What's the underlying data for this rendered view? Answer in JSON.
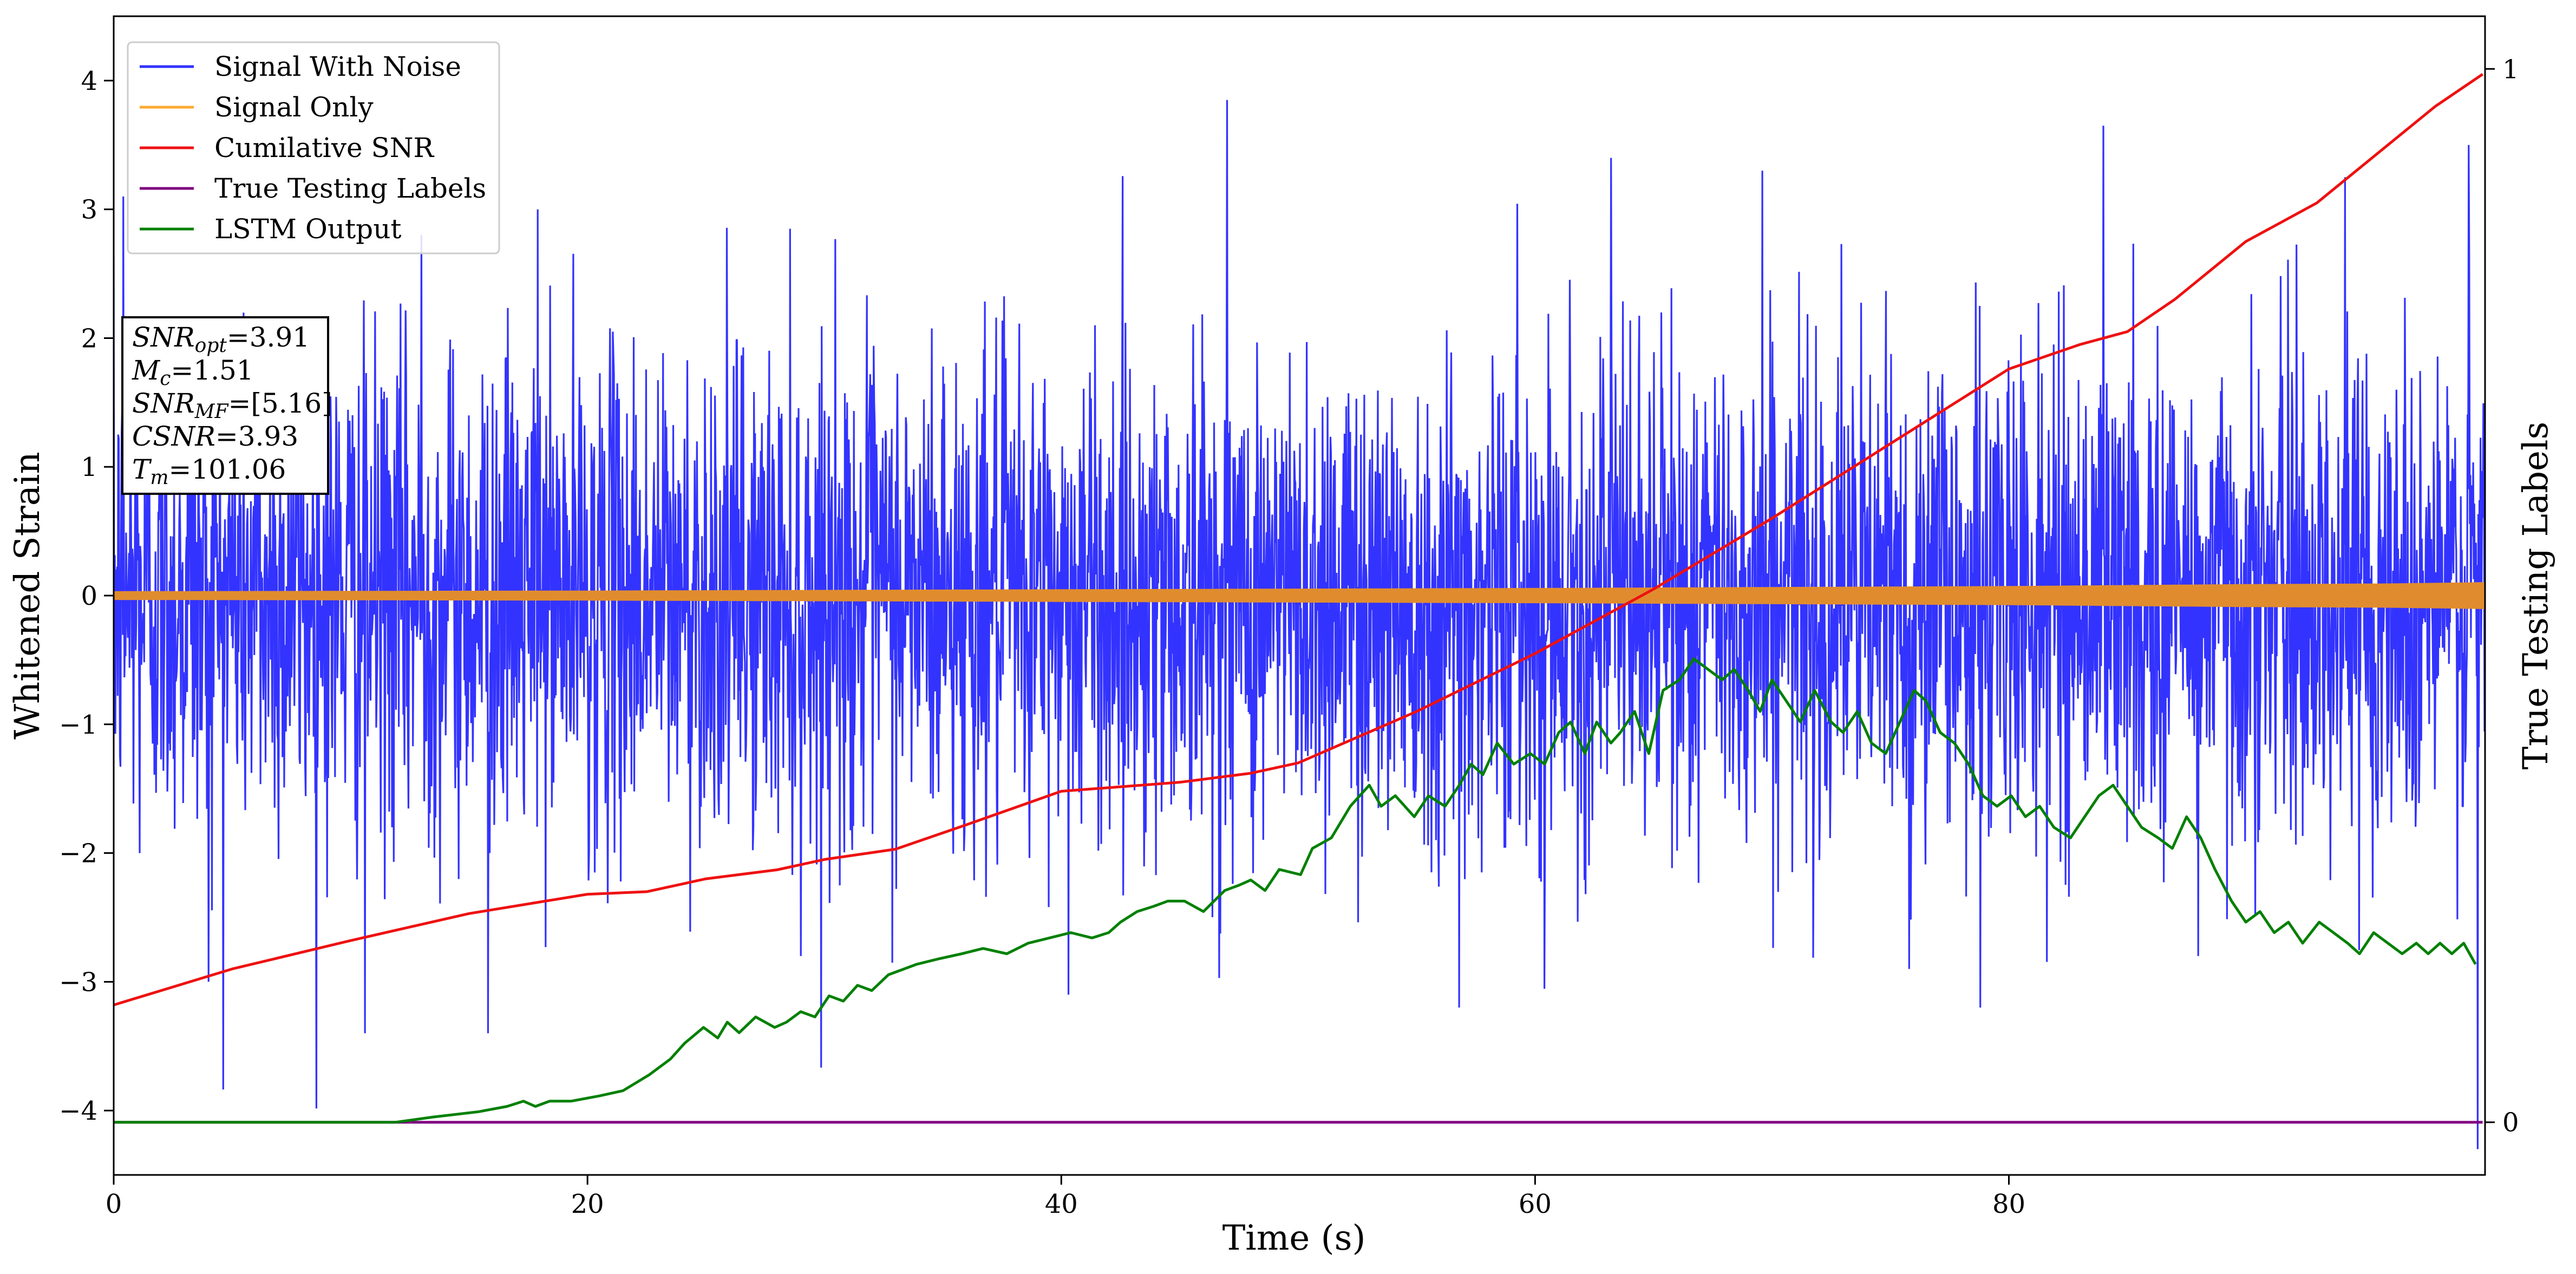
{
  "chart_data": {
    "type": "line",
    "xlabel": "Time (s)",
    "ylabel": "Whitened Strain",
    "y2label": "True Testing Labels",
    "xlim": [
      0,
      100.1
    ],
    "ylim": [
      -4.5,
      4.5
    ],
    "y2lim": [
      -0.05,
      1.05
    ],
    "x_ticks": [
      0,
      20,
      40,
      60,
      80
    ],
    "y_ticks": [
      -4,
      -3,
      -2,
      -1,
      0,
      1,
      2,
      3,
      4
    ],
    "y2_ticks": [
      0,
      1
    ],
    "grid": false,
    "legend_position": "top-left",
    "series": [
      {
        "name": "Signal With Noise",
        "color": "#3333ff",
        "axis": "left",
        "description_points": {
          "x": [
            0.4,
            1.1,
            4.0,
            10.6,
            13.0,
            15.8,
            17.9,
            29.0,
            40.3,
            47.0,
            56.8,
            63.2,
            69.6,
            75.8,
            78.8,
            84.0,
            88.0,
            94.2,
            99.4,
            99.8
          ],
          "y": [
            3.1,
            -2.0,
            -3.0,
            -3.4,
            2.8,
            -3.4,
            3.0,
            -2.8,
            -3.1,
            3.85,
            -3.2,
            3.4,
            3.3,
            -2.9,
            -3.2,
            3.65,
            -2.8,
            3.25,
            3.5,
            -4.3
          ]
        }
      },
      {
        "name": "Signal Only",
        "color": "#ffaa33",
        "axis": "left",
        "envelope": {
          "x": [
            0,
            20,
            40,
            60,
            80,
            90,
            96,
            100
          ],
          "amp": [
            0.03,
            0.035,
            0.045,
            0.055,
            0.07,
            0.085,
            0.09,
            0.1
          ]
        }
      },
      {
        "name": "Cumilative SNR",
        "color": "#ee1111",
        "axis": "left",
        "x": [
          0,
          5,
          10,
          15,
          20,
          22.5,
          25,
          28,
          30,
          33,
          36,
          40,
          45,
          48,
          50,
          55,
          60,
          65,
          70,
          75,
          80,
          83,
          85,
          87,
          90,
          93,
          95,
          98,
          100
        ],
        "y": [
          -3.18,
          -2.9,
          -2.68,
          -2.47,
          -2.32,
          -2.3,
          -2.2,
          -2.13,
          -2.05,
          -1.97,
          -1.78,
          -1.52,
          -1.45,
          -1.38,
          -1.3,
          -0.9,
          -0.45,
          0.05,
          0.6,
          1.18,
          1.76,
          1.95,
          2.05,
          2.3,
          2.75,
          3.05,
          3.35,
          3.8,
          4.05
        ]
      },
      {
        "name": "True Testing Labels",
        "color": "#800080",
        "axis": "right",
        "x": [
          0,
          100
        ],
        "y": [
          0,
          0
        ]
      },
      {
        "name": "LSTM Output",
        "color": "#008000",
        "axis": "right",
        "x": [
          0,
          11.9,
          13.5,
          15.4,
          16.6,
          17.3,
          17.8,
          18.4,
          19.3,
          20.5,
          21.5,
          22.6,
          23.5,
          24.1,
          24.9,
          25.5,
          25.9,
          26.4,
          27.1,
          27.9,
          28.4,
          29.0,
          29.6,
          30.2,
          30.8,
          31.4,
          32.0,
          32.7,
          33.3,
          33.9,
          34.8,
          35.8,
          36.7,
          37.7,
          38.6,
          39.5,
          40.4,
          41.3,
          42.0,
          42.5,
          43.2,
          43.9,
          44.5,
          45.2,
          46.0,
          46.9,
          47.5,
          48.0,
          48.6,
          49.2,
          50.1,
          50.6,
          51.4,
          52.2,
          53.0,
          53.5,
          54.1,
          54.9,
          55.5,
          56.2,
          56.8,
          57.3,
          57.8,
          58.4,
          59.1,
          59.8,
          60.4,
          61.0,
          61.5,
          62.1,
          62.6,
          63.2,
          63.6,
          64.2,
          64.8,
          65.4,
          66.1,
          66.7,
          67.3,
          67.9,
          68.4,
          69.0,
          69.5,
          70.0,
          70.6,
          71.2,
          71.8,
          72.5,
          73.0,
          73.6,
          74.2,
          74.8,
          75.4,
          76.0,
          76.5,
          77.1,
          77.7,
          78.3,
          78.9,
          79.5,
          80.1,
          80.7,
          81.3,
          81.9,
          82.6,
          83.2,
          83.8,
          84.4,
          85.0,
          85.6,
          86.3,
          86.9,
          87.5,
          88.1,
          88.7,
          89.4,
          90.0,
          90.6,
          91.2,
          91.8,
          92.4,
          93.1,
          93.7,
          94.3,
          94.8,
          95.4,
          96.0,
          96.6,
          97.2,
          97.7,
          98.2,
          98.7,
          99.2,
          99.7
        ],
        "y": [
          0.0,
          0.0,
          0.005,
          0.01,
          0.015,
          0.02,
          0.015,
          0.02,
          0.02,
          0.025,
          0.03,
          0.045,
          0.06,
          0.075,
          0.09,
          0.08,
          0.095,
          0.085,
          0.1,
          0.09,
          0.095,
          0.105,
          0.1,
          0.12,
          0.115,
          0.13,
          0.125,
          0.14,
          0.145,
          0.15,
          0.155,
          0.16,
          0.165,
          0.16,
          0.17,
          0.175,
          0.18,
          0.175,
          0.18,
          0.19,
          0.2,
          0.205,
          0.21,
          0.21,
          0.2,
          0.22,
          0.225,
          0.23,
          0.22,
          0.24,
          0.235,
          0.26,
          0.27,
          0.3,
          0.32,
          0.3,
          0.31,
          0.29,
          0.31,
          0.3,
          0.32,
          0.34,
          0.33,
          0.36,
          0.34,
          0.35,
          0.34,
          0.37,
          0.38,
          0.35,
          0.38,
          0.36,
          0.37,
          0.39,
          0.35,
          0.41,
          0.42,
          0.44,
          0.43,
          0.42,
          0.43,
          0.41,
          0.39,
          0.42,
          0.4,
          0.38,
          0.41,
          0.38,
          0.37,
          0.39,
          0.36,
          0.35,
          0.38,
          0.41,
          0.4,
          0.37,
          0.36,
          0.34,
          0.31,
          0.3,
          0.31,
          0.29,
          0.3,
          0.28,
          0.27,
          0.29,
          0.31,
          0.32,
          0.3,
          0.28,
          0.27,
          0.26,
          0.29,
          0.27,
          0.24,
          0.21,
          0.19,
          0.2,
          0.18,
          0.19,
          0.17,
          0.19,
          0.18,
          0.17,
          0.16,
          0.18,
          0.17,
          0.16,
          0.17,
          0.16,
          0.17,
          0.16,
          0.17,
          0.15
        ]
      }
    ],
    "info_box": [
      {
        "sym": "SNR",
        "sub": "opt",
        "val": "=3.91"
      },
      {
        "sym": "M",
        "sub": "c",
        "val": "=1.51"
      },
      {
        "sym": "SNR",
        "sub": "MF",
        "val": "=[5.16]"
      },
      {
        "sym": "CSNR",
        "sub": "",
        "val": "=3.93"
      },
      {
        "sym": "T",
        "sub": "m",
        "val": "=101.06"
      }
    ]
  }
}
